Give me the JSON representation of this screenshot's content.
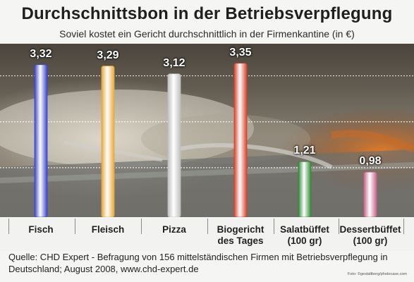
{
  "chart_data": {
    "type": "bar",
    "title": "Durchschnittsbon in der Betriebsverpflegung",
    "subtitle": "Soviel kostet ein Gericht durchschnittlich in der Firmenkantine (in €)",
    "categories": [
      "Fisch",
      "Fleisch",
      "Pizza",
      "Biogericht des Tages",
      "Salatbüffet (100 gr)",
      "Dessertbüffet (100 gr)"
    ],
    "values": [
      3.32,
      3.29,
      3.12,
      3.35,
      1.21,
      0.98
    ],
    "value_labels": [
      "3,32",
      "3,29",
      "3,12",
      "3,35",
      "1,21",
      "0,98"
    ],
    "ylim": [
      0,
      3.5
    ],
    "grid": true,
    "bar_colors": [
      "#3a44c8",
      "#e8a83a",
      "#bfbfbf",
      "#d8402a",
      "#2e8a34",
      "#c8648a"
    ]
  },
  "source": {
    "line1": "Quelle: CHD Expert - Befragung von 156 mittelständischen Firmen mit Betriebsverpflegung in",
    "line2": "Deutschland; August 2008, www.chd-expert.de"
  },
  "credit": "Foto: ©gestaltberg/photocase.com"
}
